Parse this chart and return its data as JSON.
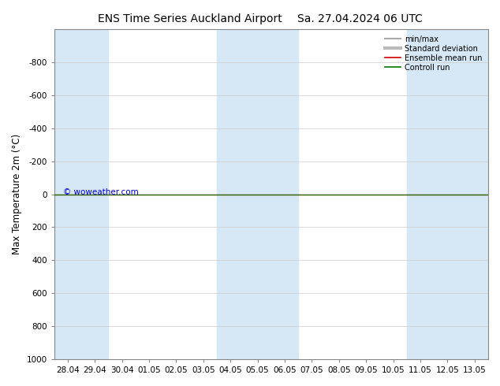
{
  "title": "ENS Time Series Auckland Airport",
  "title2": "Sa. 27.04.2024 06 UTC",
  "ylabel": "Max Temperature 2m (°C)",
  "xtick_labels": [
    "28.04",
    "29.04",
    "30.04",
    "01.05",
    "02.05",
    "03.05",
    "04.05",
    "05.05",
    "06.05",
    "07.05",
    "08.05",
    "09.05",
    "10.05",
    "11.05",
    "12.05",
    "13.05"
  ],
  "ylim": [
    -1000,
    1000
  ],
  "yticks": [
    -800,
    -600,
    -400,
    -200,
    0,
    200,
    400,
    600,
    800,
    1000
  ],
  "fig_bg_color": "#ffffff",
  "plot_bg_color": "#ffffff",
  "stripe_color": "#d6e8f5",
  "stripe_indices": [
    0,
    1,
    6,
    7,
    8,
    13,
    14,
    15
  ],
  "watermark": "© woweather.com",
  "watermark_color": "#0000cc",
  "legend_labels": [
    "min/max",
    "Standard deviation",
    "Ensemble mean run",
    "Controll run"
  ],
  "legend_line_colors": [
    "#aaaaaa",
    "#bbbbbb",
    "#cc0000",
    "#007700"
  ],
  "green_line_y": 0,
  "red_line_y": 0,
  "line_color_green": "#336600",
  "line_color_red": "#cc0000",
  "tick_label_fontsize": 7.5,
  "title_fontsize": 10,
  "ylabel_fontsize": 8.5
}
